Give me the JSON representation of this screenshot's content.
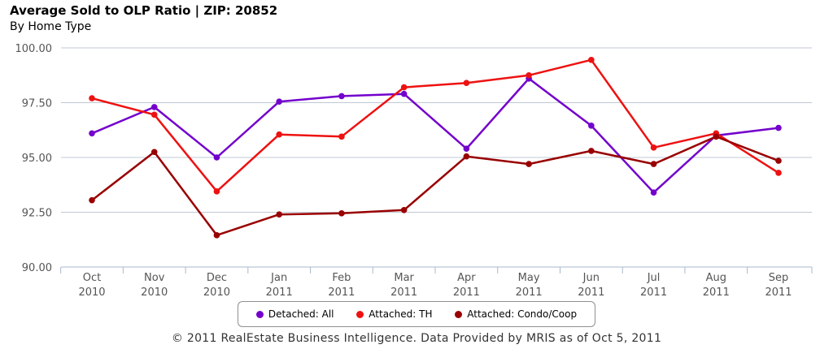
{
  "chart_data": {
    "type": "line",
    "title": "Average Sold to OLP Ratio | ZIP: 20852",
    "subtitle": "By Home Type",
    "categories": [
      [
        "Oct",
        "2010"
      ],
      [
        "Nov",
        "2010"
      ],
      [
        "Dec",
        "2010"
      ],
      [
        "Jan",
        "2011"
      ],
      [
        "Feb",
        "2011"
      ],
      [
        "Mar",
        "2011"
      ],
      [
        "Apr",
        "2011"
      ],
      [
        "May",
        "2011"
      ],
      [
        "Jun",
        "2011"
      ],
      [
        "Jul",
        "2011"
      ],
      [
        "Aug",
        "2011"
      ],
      [
        "Sep",
        "2011"
      ]
    ],
    "ylim": [
      90,
      100
    ],
    "yticks": [
      "90.00",
      "92.50",
      "95.00",
      "97.50",
      "100.00"
    ],
    "grid": true,
    "legend_position": "bottom",
    "series": [
      {
        "name": "Detached: All",
        "color": "#7300cc",
        "values": [
          96.1,
          97.3,
          95.0,
          97.55,
          97.8,
          97.9,
          95.4,
          98.6,
          96.45,
          93.4,
          96.0,
          96.35
        ]
      },
      {
        "name": "Attached: TH",
        "color": "#ee1111",
        "values": [
          97.7,
          96.95,
          93.45,
          96.05,
          95.95,
          98.2,
          98.4,
          98.75,
          99.45,
          95.45,
          96.1,
          94.3
        ]
      },
      {
        "name": "Attached: Condo/Coop",
        "color": "#990000",
        "values": [
          93.05,
          95.25,
          91.45,
          92.4,
          92.45,
          92.6,
          95.05,
          94.7,
          95.3,
          94.7,
          95.95,
          94.85
        ]
      }
    ]
  },
  "footer": "© 2011 RealEstate Business Intelligence. Data Provided by MRIS as of Oct 5, 2011"
}
